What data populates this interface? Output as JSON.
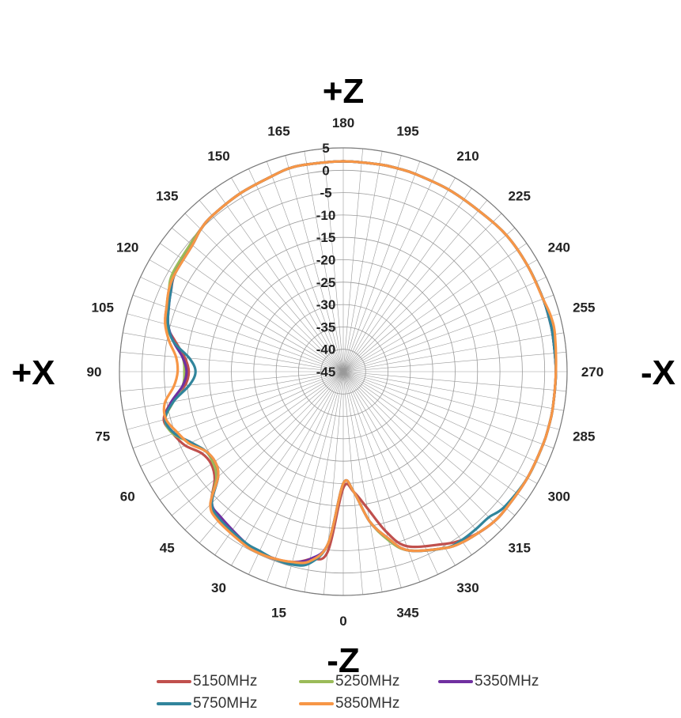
{
  "chart_data": {
    "type": "polar-line",
    "title": "",
    "top_label": "+Z",
    "bottom_label": "-Z",
    "left_label": "+X",
    "right_label": "-X",
    "angle_unit": "degrees",
    "angle_labels": [
      0,
      15,
      30,
      45,
      60,
      75,
      90,
      105,
      120,
      135,
      150,
      165,
      180,
      195,
      210,
      225,
      240,
      255,
      270,
      285,
      300,
      315,
      330,
      345
    ],
    "angle_label_text": [
      "0",
      "15",
      "30",
      "45",
      "60",
      "75",
      "90",
      "105",
      "120",
      "135",
      "150",
      "165",
      "180",
      "195",
      "210",
      "225",
      "240",
      "255",
      "270",
      "285",
      "300",
      "315",
      "330",
      "345"
    ],
    "radial_range": [
      -45,
      5
    ],
    "radial_ticks": [
      5,
      0,
      -5,
      -10,
      -15,
      -20,
      -25,
      -30,
      -35,
      -40,
      -45
    ],
    "radial_tick_text": [
      "5",
      "0",
      "-5",
      "-10",
      "-15",
      "-20",
      "-25",
      "-30",
      "-35",
      "-40",
      "-45"
    ],
    "grid": true,
    "legend_position": "bottom",
    "angles": [
      0,
      5,
      10,
      15,
      20,
      25,
      30,
      40,
      45,
      50,
      55,
      60,
      65,
      70,
      75,
      80,
      85,
      90,
      95,
      100,
      105,
      110,
      115,
      120,
      130,
      135,
      140,
      150,
      160,
      165,
      170,
      180,
      190,
      195,
      200,
      210,
      220,
      230,
      240,
      250,
      255,
      260,
      270,
      280,
      285,
      290,
      300,
      310,
      315,
      320,
      325,
      330,
      340,
      345,
      350,
      355
    ],
    "series": [
      {
        "name": "5150MHz",
        "color": "#c0504d",
        "values": [
          -19,
          -4.5,
          -2.5,
          -0.8,
          -0.4,
          -0.4,
          -0.8,
          -2.0,
          -3.3,
          -7.5,
          -9.0,
          -8.5,
          -6.0,
          -4.5,
          -3.5,
          -6.0,
          -9.5,
          -10.5,
          -9.5,
          -7.0,
          -4.0,
          -3.0,
          -2.5,
          -1.5,
          -0.5,
          0.0,
          0.5,
          1.0,
          1.5,
          2.0,
          2.0,
          2.0,
          2.0,
          2.0,
          2.0,
          2.0,
          2.0,
          2.5,
          2.5,
          2.5,
          2.5,
          2.5,
          2.5,
          2.5,
          2.5,
          2.5,
          2.5,
          2.5,
          2.5,
          2.0,
          1.0,
          -0.5,
          -3.5,
          -8.0,
          -14.0,
          -18.0
        ]
      },
      {
        "name": "5250MHz",
        "color": "#9bbb59",
        "values": [
          -20,
          -6.5,
          -2.0,
          -0.7,
          -0.5,
          -0.3,
          -0.8,
          -2.0,
          -3.2,
          -8.0,
          -9.5,
          -9.5,
          -7.5,
          -4.5,
          -3.8,
          -6.5,
          -9.0,
          -9.5,
          -9.0,
          -6.5,
          -4.0,
          -3.0,
          -2.0,
          -1.0,
          -0.5,
          0.0,
          0.5,
          1.0,
          1.5,
          2.0,
          2.0,
          2.0,
          2.0,
          2.0,
          2.0,
          2.0,
          2.0,
          2.5,
          2.5,
          2.5,
          2.5,
          2.5,
          2.5,
          2.5,
          2.5,
          2.5,
          2.5,
          2.5,
          2.5,
          2.0,
          1.5,
          0.5,
          -2.5,
          -6.0,
          -11.0,
          -18.0
        ]
      },
      {
        "name": "5350MHz",
        "color": "#7030a0",
        "values": [
          -20,
          -6.5,
          -2.5,
          -1.0,
          -0.5,
          -0.6,
          -1.0,
          -2.5,
          -3.5,
          -8.5,
          -10.0,
          -9.5,
          -7.5,
          -4.8,
          -3.8,
          -6.0,
          -9.0,
          -10.0,
          -9.0,
          -6.5,
          -4.5,
          -3.5,
          -2.5,
          -1.5,
          -1.0,
          0.0,
          0.5,
          1.0,
          1.5,
          2.0,
          2.0,
          2.0,
          2.0,
          2.0,
          2.0,
          2.0,
          2.0,
          2.5,
          2.5,
          2.5,
          2.5,
          2.5,
          2.5,
          2.5,
          2.5,
          2.5,
          2.5,
          2.5,
          2.5,
          2.0,
          1.5,
          0.5,
          -2.5,
          -6.5,
          -11.0,
          -18.0
        ]
      },
      {
        "name": "5750MHz",
        "color": "#31859c",
        "values": [
          -20,
          -6.5,
          -1.5,
          -0.4,
          -0.4,
          -0.8,
          -1.0,
          -2.0,
          -3.5,
          -8.5,
          -10.0,
          -9.5,
          -7.5,
          -4.8,
          -3.8,
          -6.5,
          -10.5,
          -12.0,
          -10.5,
          -6.5,
          -4.5,
          -3.5,
          -2.5,
          -1.5,
          -1.0,
          0.0,
          0.5,
          1.0,
          1.5,
          2.0,
          2.0,
          2.0,
          2.0,
          2.0,
          2.0,
          2.0,
          2.0,
          2.5,
          2.5,
          2.5,
          2.5,
          2.5,
          2.5,
          2.5,
          2.5,
          2.5,
          2.5,
          2.0,
          1.0,
          1.0,
          1.0,
          0.5,
          -2.5,
          -6.5,
          -11.0,
          -18.0
        ]
      },
      {
        "name": "5850MHz",
        "color": "#f79646",
        "values": [
          -20,
          -6.5,
          -2.0,
          -1.0,
          -0.5,
          -0.3,
          -0.5,
          -1.5,
          -3.0,
          -8.5,
          -10.0,
          -9.5,
          -7.0,
          -5.5,
          -4.0,
          -4.5,
          -7.0,
          -8.0,
          -7.5,
          -5.5,
          -3.8,
          -3.0,
          -2.0,
          -1.5,
          -1.0,
          0.0,
          0.5,
          1.0,
          1.5,
          2.0,
          2.0,
          2.0,
          2.0,
          2.0,
          2.0,
          2.0,
          2.0,
          2.5,
          2.5,
          2.5,
          3.0,
          3.0,
          2.5,
          2.5,
          2.5,
          2.5,
          2.5,
          2.5,
          2.5,
          2.0,
          1.5,
          0.5,
          -2.5,
          -6.5,
          -11.0,
          -18.0
        ]
      }
    ]
  }
}
